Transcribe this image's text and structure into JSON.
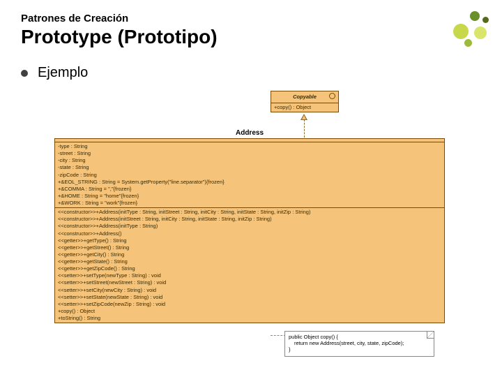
{
  "header": {
    "subtitle": "Patrones de Creación",
    "title": "Prototype (Prototipo)"
  },
  "bullet": {
    "text": "Ejemplo"
  },
  "deco": {
    "colors": [
      "#c7d84a",
      "#6a8f2b",
      "#d9e66b",
      "#9cbb3a",
      "#556b1a"
    ]
  },
  "uml": {
    "copyable": {
      "name": "Copyable",
      "method": "+copy() : Object"
    },
    "address": {
      "name": "Address",
      "attributes": [
        "-type : String",
        "-street : String",
        "-city : String",
        "-state : String",
        "-zipCode : String",
        "+&EOL_STRING : String = System.getProperty(\"line.separator\"){frozen}",
        "+&COMMA : String = \",\"{frozen}",
        "+&HOME : String = \"home\"{frozen}",
        "+&WORK : String = \"work\"{frozen}"
      ],
      "operations": [
        "<<constructor>>+Address(initType : String, initStreet : String, initCity : String, initState : String, initZip : String)",
        "<<constructor>>+Address(initStreet : String, initCity : String, initState : String, initZip : String)",
        "<<constructor>>+Address(initType : String)",
        "<<constructor>>+Address()",
        "<<getter>>+getType() : String",
        "<<getter>>+getStreet() : String",
        "<<getter>>+getCity() : String",
        "<<getter>>+getState() : String",
        "<<getter>>+getZipCode() : String",
        "<<setter>>+setType(newType : String) : void",
        "<<setter>>+setStreet(newStreet : String) : void",
        "<<setter>>+setCity(newCity : String) : void",
        "<<setter>>+setState(newState : String) : void",
        "<<setter>>+setZipCode(newZip : String) : void",
        "+copy() : Object",
        "+toString() : String"
      ]
    },
    "note": {
      "line1": "public Object copy() {",
      "line2": "  return new Address(street, city, state, zipCode);",
      "line3": "}"
    },
    "colors": {
      "box_fill": "#f5c37a",
      "box_border": "#7a4a00",
      "text": "#3a2a00",
      "arrow": "#8a6a30",
      "note_bg": "#ffffff",
      "note_border": "#888888"
    }
  }
}
